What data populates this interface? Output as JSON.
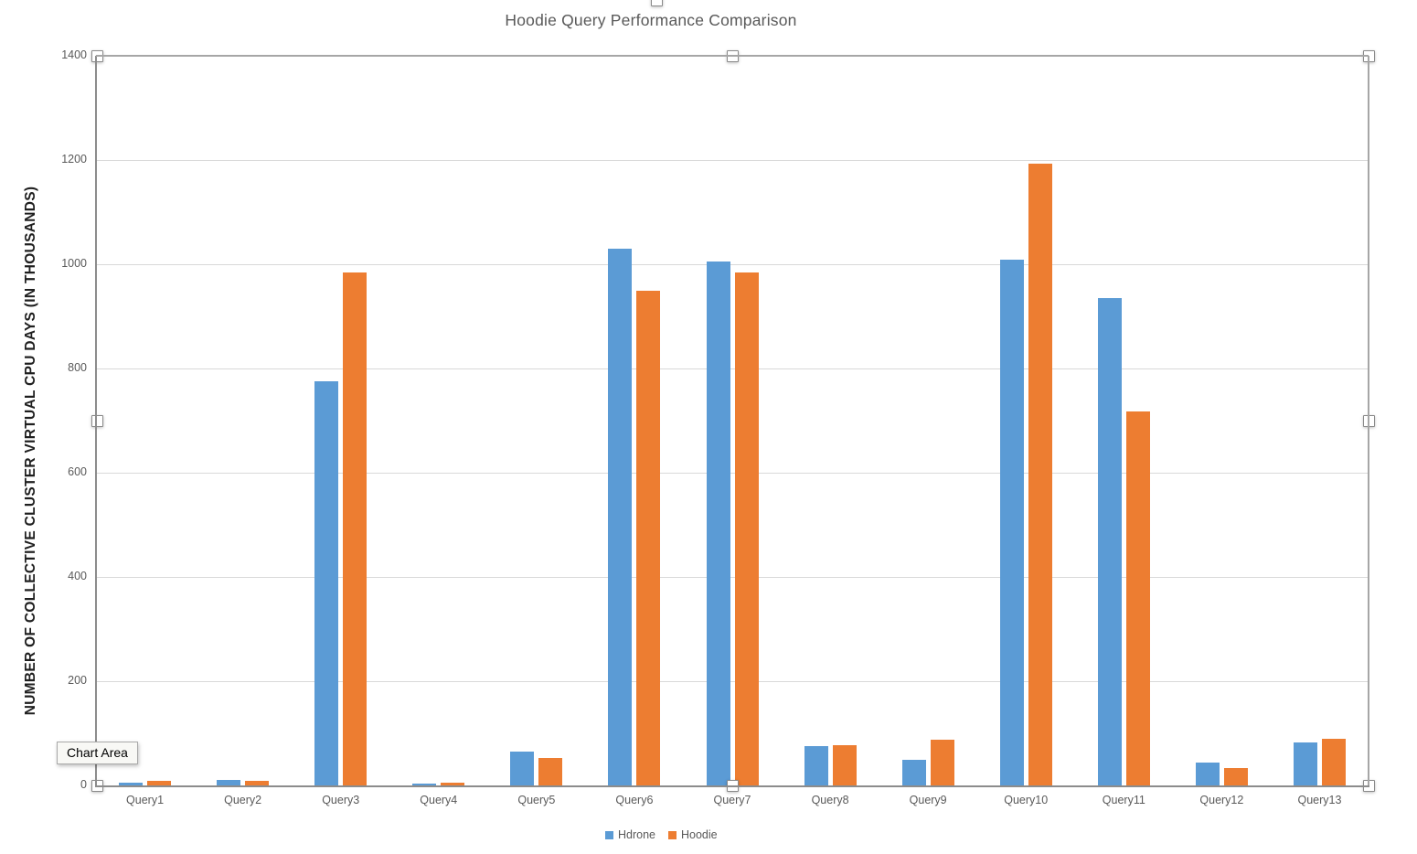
{
  "chart": {
    "tooltip_label": "Chart Area"
  },
  "chart_data": {
    "type": "bar",
    "title": "Hoodie Query Performance Comparison",
    "xlabel": "",
    "ylabel": "NUMBER OF COLLECTIVE CLUSTER VIRTUAL CPU DAYS (IN THOUSANDS)",
    "categories": [
      "Query1",
      "Query2",
      "Query3",
      "Query4",
      "Query5",
      "Query6",
      "Query7",
      "Query8",
      "Query9",
      "Query10",
      "Query11",
      "Query12",
      "Query13"
    ],
    "series": [
      {
        "name": "Hdrone",
        "color": "#5B9BD5",
        "values": [
          6,
          10,
          775,
          4,
          65,
          1030,
          1005,
          76,
          50,
          1008,
          935,
          44,
          82
        ]
      },
      {
        "name": "Hoodie",
        "color": "#ED7D31",
        "values": [
          9,
          8,
          985,
          5,
          52,
          950,
          985,
          77,
          87,
          1193,
          718,
          34,
          90
        ]
      }
    ],
    "ylim": [
      0,
      1400
    ],
    "ytick_step": 200,
    "grid": true,
    "legend_position": "bottom"
  },
  "selection": {
    "selected_element": "Chart Area",
    "handle_positions": [
      "top-left",
      "top-center",
      "top-right",
      "middle-left",
      "middle-right",
      "bottom-left",
      "bottom-center",
      "bottom-right",
      "chart-top-partial"
    ]
  },
  "colors": {
    "background": "#FFFFFF",
    "grid": "#D9D9D9",
    "axis": "#8C8C8C",
    "selection_border": "#A6A6A6",
    "tick_label": "#595959",
    "title": "#595959",
    "axis_title": "#1F1F1F",
    "handle_fill": "#FFFFFF",
    "handle_border": "#8A8A8A",
    "tooltip_bg": "#F8F8F5",
    "tooltip_text": "#000000"
  }
}
